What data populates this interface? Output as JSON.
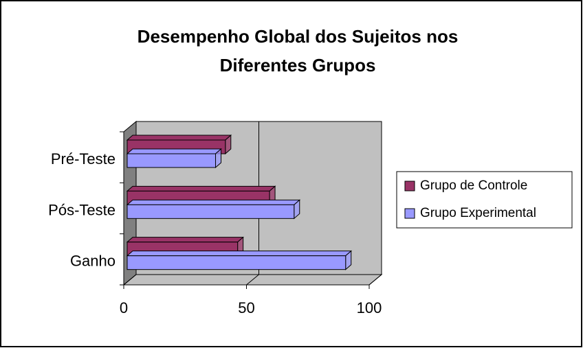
{
  "chart_data": {
    "type": "bar3d_horizontal",
    "title": [
      "Desempenho Global dos Sujeitos nos",
      "Diferentes Grupos"
    ],
    "categories": [
      "Pré-Teste",
      "Pós-Teste",
      "Ganho"
    ],
    "series": [
      {
        "name": "Grupo de Controle",
        "color": "#993366",
        "values": [
          40,
          58,
          45
        ]
      },
      {
        "name": "Grupo Experimental",
        "color": "#9999ff",
        "values": [
          36,
          68,
          89
        ]
      }
    ],
    "xlim": [
      0,
      100
    ],
    "xticks": [
      0,
      50,
      100
    ],
    "grid": true,
    "legend": "right"
  }
}
